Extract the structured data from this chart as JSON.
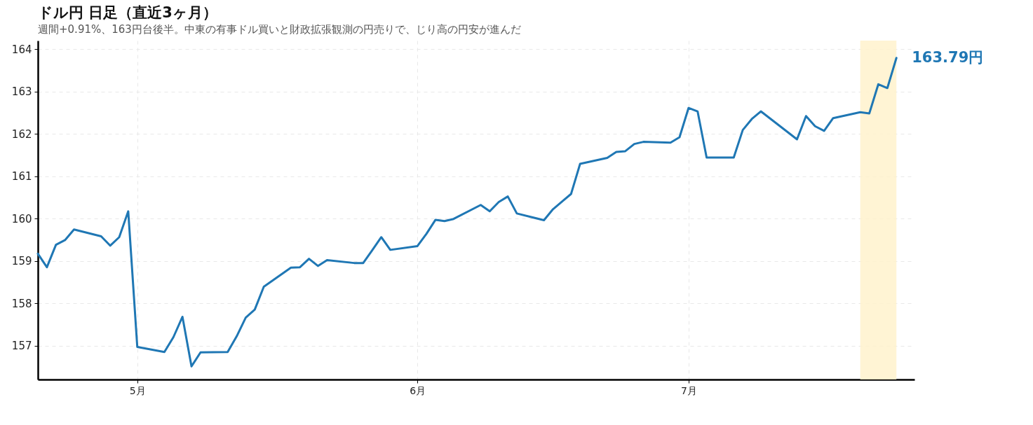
{
  "chart_data": {
    "type": "line",
    "title": "ドル円 日足（直近3ヶ月）",
    "subtitle": "週間+0.91%、163円台後半。中東の有事ドル買いと財政拡張観測の円売りで、じり高の円安が進んだ",
    "x": [
      "--04-20",
      "--04-21",
      "--04-22",
      "--04-23",
      "--04-24",
      "--04-27",
      "--04-28",
      "--04-29",
      "--04-30",
      "--05-01",
      "--05-04",
      "--05-05",
      "--05-06",
      "--05-07",
      "--05-08",
      "--05-11",
      "--05-12",
      "--05-13",
      "--05-14",
      "--05-15",
      "--05-18",
      "--05-19",
      "--05-20",
      "--05-21",
      "--05-22",
      "--05-25",
      "--05-26",
      "--05-27",
      "--05-28",
      "--05-29",
      "--06-01",
      "--06-02",
      "--06-03",
      "--06-04",
      "--06-05",
      "--06-08",
      "--06-09",
      "--06-10",
      "--06-11",
      "--06-12",
      "--06-15",
      "--06-16",
      "--06-17",
      "--06-18",
      "--06-19",
      "--06-22",
      "--06-23",
      "--06-24",
      "--06-25",
      "--06-26",
      "--06-29",
      "--06-30",
      "--07-01",
      "--07-02",
      "--07-03",
      "--07-06",
      "--07-07",
      "--07-08",
      "--07-09",
      "--07-13",
      "--07-14",
      "--07-15",
      "--07-16",
      "--07-17",
      "--07-20",
      "--07-21",
      "--07-22",
      "--07-23",
      "--07-24"
    ],
    "series": [
      {
        "color": "#1f77b4",
        "values": [
          159.17,
          158.85,
          159.38,
          159.49,
          159.74,
          159.58,
          159.36,
          159.56,
          160.17,
          156.97,
          156.85,
          157.2,
          157.68,
          156.51,
          156.84,
          156.85,
          157.22,
          157.66,
          157.85,
          158.39,
          158.84,
          158.85,
          159.05,
          158.88,
          159.02,
          158.95,
          158.95,
          159.25,
          159.56,
          159.26,
          159.35,
          159.64,
          159.97,
          159.94,
          159.99,
          160.32,
          160.17,
          160.39,
          160.52,
          160.12,
          159.96,
          160.22,
          160.4,
          160.58,
          161.29,
          161.43,
          161.57,
          161.59,
          161.76,
          161.81,
          161.79,
          161.92,
          162.61,
          162.53,
          161.44,
          161.44,
          162.09,
          162.35,
          162.53,
          161.87,
          162.42,
          162.18,
          162.07,
          162.37,
          162.51,
          162.48,
          163.17,
          163.08,
          163.79
        ]
      }
    ],
    "xlim": [
      "--04-20",
      "--07-26"
    ],
    "xticks": [
      {
        "value": "--05-01",
        "label": "5月"
      },
      {
        "value": "--06-01",
        "label": "6月"
      },
      {
        "value": "--07-01",
        "label": "7月"
      }
    ],
    "ylim": [
      156.2,
      164.2
    ],
    "yticks": [
      157,
      158,
      159,
      160,
      161,
      162,
      163,
      164
    ],
    "grid": true,
    "bands": [
      {
        "axis": "x",
        "from": "--07-20",
        "to": "--07-24",
        "color": "#fff2cc"
      }
    ],
    "annotations": [
      {
        "text": "163.79円",
        "x": "--07-24",
        "y": 163.79
      }
    ]
  }
}
